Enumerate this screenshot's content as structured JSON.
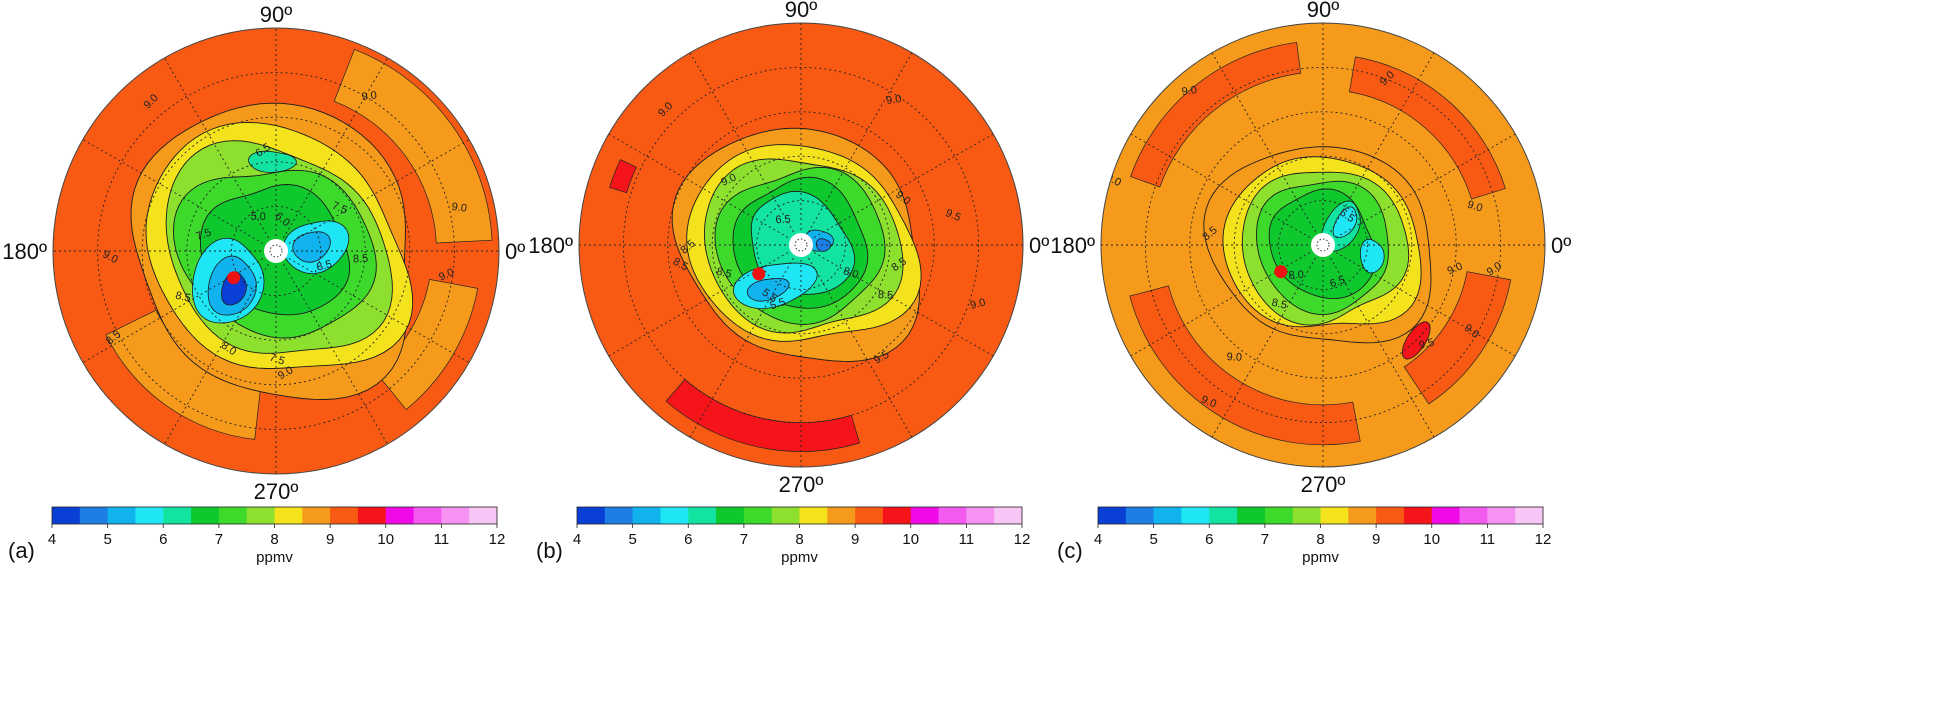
{
  "colors": {
    "scale": [
      "#0a3fd6",
      "#1d7fe6",
      "#11b3ee",
      "#1ee6f5",
      "#12e3a0",
      "#0ec82e",
      "#3dd92b",
      "#8ee02e",
      "#f3e21c",
      "#f59a1a",
      "#f85a14",
      "#f5141a",
      "#f00ae8",
      "#f25af0",
      "#f592f2",
      "#f7c6f6"
    ],
    "accent_point": "#ee1111"
  },
  "panels": [
    {
      "id": "a",
      "label": "(a)",
      "angle_labels": {
        "top": "90º",
        "left": "180º",
        "right": "0º",
        "bottom": "270º"
      }
    },
    {
      "id": "b",
      "label": "(b)",
      "angle_labels": {
        "top": "90º",
        "left": "180º",
        "right": "0º",
        "bottom": "270º"
      }
    },
    {
      "id": "c",
      "label": "(c)",
      "angle_labels": {
        "top": "90º",
        "left": "180º",
        "right": "0º",
        "bottom": "270º"
      }
    }
  ],
  "colorbar": {
    "ticks": [
      "4",
      "5",
      "6",
      "7",
      "8",
      "9",
      "10",
      "11",
      "12"
    ],
    "unit": "ppmv",
    "min": 4,
    "max": 12,
    "step": 0.5
  },
  "chart_data": [
    {
      "type": "heatmap",
      "projection": "polar",
      "panel": "a",
      "unit": "ppmv",
      "range": [
        4,
        12
      ],
      "contour_labels": [
        "9.0",
        "9.0",
        "9.0",
        "9.0",
        "8.5",
        "8.5",
        "8.5",
        "8.0",
        "7.5",
        "7.5",
        "6.5",
        "5.0",
        "6.0",
        "8.5",
        "7.5",
        "9.0",
        "9.0"
      ],
      "min_region_value": 4.5,
      "outer_value": 9.5
    },
    {
      "type": "heatmap",
      "projection": "polar",
      "panel": "b",
      "unit": "ppmv",
      "range": [
        4,
        12
      ],
      "contour_labels": [
        "9.0",
        "9.0",
        "8.5",
        "9.0",
        "8.5",
        "8.5",
        "6.5",
        "5.5",
        "5.5",
        "8.0",
        "8.5",
        "8.5",
        "9.0",
        "9.0",
        "9.5",
        "9.5"
      ],
      "min_region_value": 5.0,
      "outer_value": 9.5
    },
    {
      "type": "heatmap",
      "projection": "polar",
      "panel": "c",
      "unit": "ppmv",
      "range": [
        4,
        12
      ],
      "contour_labels": [
        "9.0",
        "9.0",
        "9.0",
        "9.0",
        "8.5",
        "8.5",
        "8.0",
        "6.5",
        "6.5",
        "9.0",
        "9.0",
        "9.0",
        "9.0",
        "9.5",
        "9.0"
      ],
      "min_region_value": 5.5,
      "outer_value": 9.0
    }
  ]
}
